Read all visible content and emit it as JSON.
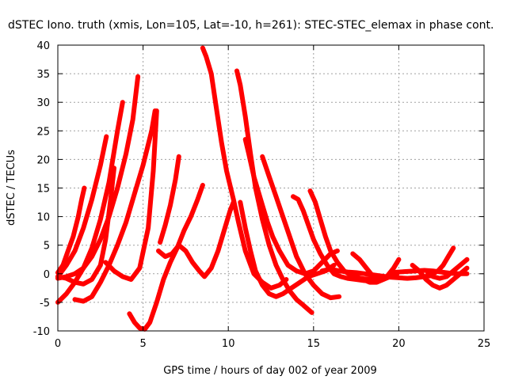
{
  "chart_data": {
    "type": "scatter",
    "title": "dSTEC Iono. truth (xmis, Lon=105, Lat=-10, h=261): STEC-STEC_elemax in phase cont.",
    "xlabel": "GPS time / hours of day 002 of year 2009",
    "ylabel": "dSTEC  / TECUs",
    "xlim": [
      0,
      25
    ],
    "ylim": [
      -10,
      40
    ],
    "xticks": [
      0,
      5,
      10,
      15,
      20,
      25
    ],
    "yticks": [
      -10,
      -5,
      0,
      5,
      10,
      15,
      20,
      25,
      30,
      35,
      40
    ],
    "grid": true,
    "marker_color": "#ff0000",
    "series": [
      {
        "x": [
          0.0,
          0.3,
          0.6,
          0.9,
          1.2,
          1.4,
          1.55
        ],
        "y": [
          0.2,
          1.5,
          4.0,
          6.5,
          10.0,
          13.0,
          15.0
        ]
      },
      {
        "x": [
          0.0,
          0.5,
          1.0,
          1.5,
          2.0,
          2.5,
          2.85
        ],
        "y": [
          -0.5,
          1.5,
          4.0,
          8.0,
          13.0,
          19.0,
          24.0
        ]
      },
      {
        "x": [
          0.0,
          0.5,
          1.0,
          1.5,
          2.0,
          2.5,
          2.8,
          3.1,
          3.3
        ],
        "y": [
          -0.5,
          -0.8,
          -1.5,
          -1.8,
          -1.0,
          1.5,
          6.0,
          13.0,
          18.5
        ]
      },
      {
        "x": [
          0.0,
          0.5,
          1.0,
          1.5,
          2.0,
          2.5,
          3.0,
          3.5,
          3.8
        ],
        "y": [
          -5.0,
          -3.5,
          -1.5,
          1.0,
          4.5,
          9.5,
          16.0,
          25.0,
          30.0
        ]
      },
      {
        "x": [
          0.0,
          0.5,
          1.0,
          1.5,
          2.0,
          2.5,
          3.0,
          3.5,
          4.0,
          4.4,
          4.7
        ],
        "y": [
          -0.8,
          -0.5,
          0.0,
          1.0,
          3.0,
          6.0,
          10.0,
          15.0,
          21.0,
          27.0,
          34.5
        ]
      },
      {
        "x": [
          1.0,
          1.5,
          2.0,
          2.5,
          3.0,
          3.5,
          4.0,
          4.5,
          5.0,
          5.5,
          5.7
        ],
        "y": [
          -4.5,
          -4.8,
          -4.0,
          -1.5,
          1.5,
          5.0,
          9.0,
          14.0,
          19.0,
          25.0,
          28.5
        ]
      },
      {
        "x": [
          2.8,
          3.3,
          3.8,
          4.3,
          4.8,
          5.3,
          5.6,
          5.8
        ],
        "y": [
          2.0,
          0.5,
          -0.5,
          -1.0,
          1.0,
          8.0,
          18.0,
          28.5
        ]
      },
      {
        "x": [
          4.2,
          4.5,
          4.8,
          5.1,
          5.4,
          5.8,
          6.2,
          6.6,
          7.0,
          7.4,
          7.8,
          8.2,
          8.5
        ],
        "y": [
          -7.0,
          -8.5,
          -9.5,
          -9.7,
          -8.5,
          -5.0,
          -1.0,
          2.0,
          4.5,
          7.5,
          10.0,
          13.0,
          15.5
        ]
      },
      {
        "x": [
          6.0,
          6.3,
          6.6,
          6.9,
          7.1
        ],
        "y": [
          5.5,
          8.5,
          12.0,
          16.5,
          20.5
        ]
      },
      {
        "x": [
          5.9,
          6.3,
          6.7,
          7.1,
          7.5,
          7.9,
          8.3,
          8.6,
          9.0,
          9.4,
          9.8,
          10.1,
          10.3
        ],
        "y": [
          4.0,
          3.0,
          3.5,
          5.0,
          4.0,
          2.0,
          0.5,
          -0.5,
          1.0,
          4.0,
          8.0,
          11.0,
          12.5
        ]
      },
      {
        "x": [
          8.5,
          8.7,
          9.0,
          9.3,
          9.6,
          9.9,
          10.3,
          10.6,
          11.0,
          11.5,
          12.0,
          12.5,
          13.0,
          13.4
        ],
        "y": [
          39.5,
          38.0,
          35.0,
          29.0,
          23.0,
          18.0,
          13.0,
          9.0,
          4.0,
          0.0,
          -1.5,
          -2.5,
          -2.0,
          -1.0
        ]
      },
      {
        "x": [
          10.5,
          10.7,
          11.0,
          11.3,
          11.6,
          12.0,
          12.4,
          12.8,
          13.2,
          13.6,
          14.0,
          14.4,
          14.9
        ],
        "y": [
          35.5,
          33.0,
          27.5,
          21.0,
          15.0,
          9.5,
          5.0,
          1.5,
          -1.0,
          -3.0,
          -4.5,
          -5.5,
          -6.8
        ]
      },
      {
        "x": [
          10.7,
          11.0,
          11.3,
          11.6,
          12.0,
          12.4,
          12.8,
          13.2,
          13.7,
          14.2,
          14.7,
          15.2,
          15.7,
          16.2
        ],
        "y": [
          12.5,
          8.0,
          4.0,
          0.5,
          -2.0,
          -3.5,
          -4.0,
          -3.5,
          -2.5,
          -1.5,
          -0.5,
          0.0,
          0.5,
          1.5
        ]
      },
      {
        "x": [
          11.0,
          11.2,
          11.5,
          11.8,
          12.0,
          12.3,
          12.6,
          13.0,
          13.5,
          14.0,
          14.5,
          15.0,
          15.5,
          16.0,
          16.4
        ],
        "y": [
          23.5,
          21.0,
          17.0,
          14.0,
          12.0,
          9.0,
          6.5,
          4.0,
          1.5,
          0.5,
          0.0,
          0.5,
          2.0,
          3.5,
          4.0
        ]
      },
      {
        "x": [
          12.0,
          12.4,
          12.8,
          13.2,
          13.6,
          14.0,
          14.5,
          15.0,
          15.5,
          16.0,
          16.5
        ],
        "y": [
          20.5,
          17.0,
          13.5,
          10.0,
          6.5,
          3.0,
          0.0,
          -2.0,
          -3.5,
          -4.2,
          -4.0
        ]
      },
      {
        "x": [
          13.8,
          14.1,
          14.4,
          14.7,
          15.0,
          15.4,
          15.8,
          16.2,
          16.6,
          17.0,
          17.5,
          18.0
        ],
        "y": [
          13.5,
          13.0,
          11.0,
          8.5,
          6.0,
          3.5,
          1.5,
          0.0,
          -0.5,
          -0.8,
          -1.0,
          -1.2
        ]
      },
      {
        "x": [
          14.8,
          15.1,
          15.4,
          15.7,
          16.0,
          16.4,
          16.8,
          17.2,
          17.6,
          18.0,
          18.5,
          19.0,
          19.5
        ],
        "y": [
          14.5,
          12.5,
          9.5,
          6.5,
          4.0,
          2.0,
          0.5,
          -0.3,
          -0.7,
          -0.9,
          -0.9,
          -0.7,
          -0.5
        ]
      },
      {
        "x": [
          15.5,
          16.0,
          16.5,
          17.0,
          17.5,
          18.0,
          18.5,
          19.0,
          19.5,
          20.0,
          20.5,
          21.0,
          21.5,
          22.0
        ],
        "y": [
          0.5,
          0.8,
          0.5,
          0.3,
          0.2,
          0.0,
          -0.2,
          -0.4,
          -0.6,
          -0.7,
          -0.8,
          -0.7,
          -0.5,
          -0.3
        ]
      },
      {
        "x": [
          17.3,
          17.7,
          18.1,
          18.5,
          18.9,
          19.3,
          19.7,
          20.0
        ],
        "y": [
          3.5,
          2.5,
          1.0,
          -0.5,
          -1.0,
          -0.5,
          1.0,
          2.5
        ]
      },
      {
        "x": [
          17.5,
          17.9,
          18.3,
          18.7,
          19.1,
          19.5,
          19.9
        ],
        "y": [
          -0.5,
          -1.0,
          -1.5,
          -1.5,
          -1.0,
          -0.5,
          0.0
        ]
      },
      {
        "x": [
          19.5,
          20.0,
          20.5,
          21.0,
          21.5,
          22.0,
          22.5,
          23.0,
          23.5,
          24.0
        ],
        "y": [
          0.2,
          0.3,
          0.4,
          0.5,
          0.6,
          0.5,
          0.3,
          0.1,
          0.0,
          0.0
        ]
      },
      {
        "x": [
          20.8,
          21.2,
          21.6,
          22.0,
          22.4,
          22.8,
          23.2,
          23.6,
          24.0
        ],
        "y": [
          1.5,
          0.5,
          -1.0,
          -2.0,
          -2.5,
          -2.0,
          -1.0,
          0.0,
          1.0
        ]
      },
      {
        "x": [
          21.7,
          22.0,
          22.3,
          22.6,
          22.9,
          23.2
        ],
        "y": [
          0.0,
          0.0,
          0.5,
          1.5,
          3.0,
          4.5
        ]
      },
      {
        "x": [
          22.0,
          22.4,
          22.8,
          23.2,
          23.6,
          24.0
        ],
        "y": [
          -0.5,
          -0.8,
          -0.5,
          0.5,
          1.5,
          2.5
        ]
      }
    ]
  }
}
